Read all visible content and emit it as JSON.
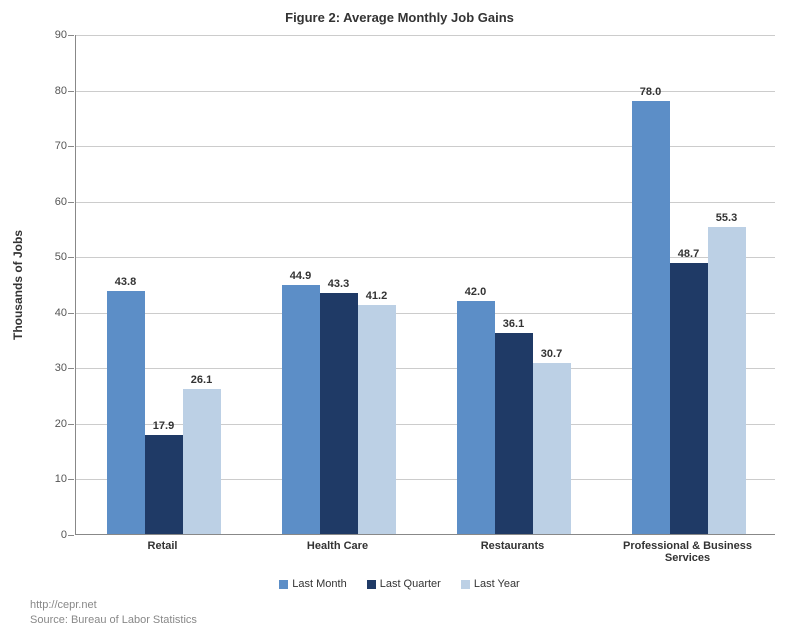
{
  "chart": {
    "type": "bar",
    "title": "Figure 2: Average Monthly Job Gains",
    "ylabel": "Thousands of Jobs",
    "ylim": [
      0,
      90
    ],
    "ytick_step": 10,
    "yticks": [
      0,
      10,
      20,
      30,
      40,
      50,
      60,
      70,
      80,
      90
    ],
    "categories": [
      "Retail",
      "Health Care",
      "Restaurants",
      "Professional & Business\nServices"
    ],
    "series": [
      {
        "name": "Last Month",
        "color": "#5c8ec7",
        "values": [
          43.8,
          44.9,
          42.0,
          78.0
        ]
      },
      {
        "name": "Last Quarter",
        "color": "#1f3a66",
        "values": [
          17.9,
          43.3,
          36.1,
          48.7
        ]
      },
      {
        "name": "Last Year",
        "color": "#bcd0e5",
        "values": [
          26.1,
          41.2,
          30.7,
          55.3
        ]
      }
    ],
    "grid_color": "#cccccc",
    "axis_color": "#888888",
    "background_color": "#ffffff",
    "title_fontsize": 13,
    "label_fontsize": 12,
    "tick_fontsize": 11,
    "bar_label_fontsize": 11,
    "source_url": "http://cepr.net",
    "source_text": "Source: Bureau of Labor Statistics"
  }
}
